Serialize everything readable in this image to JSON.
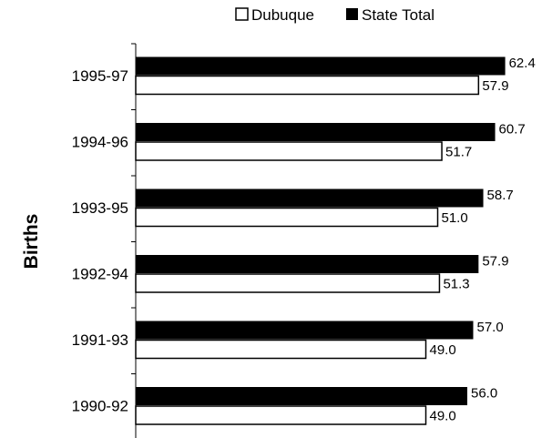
{
  "chart_data": {
    "type": "bar",
    "orientation": "horizontal",
    "categories": [
      "1995-97",
      "1994-96",
      "1993-95",
      "1992-94",
      "1991-93",
      "1990-92"
    ],
    "series": [
      {
        "name": "State Total",
        "color": "#000000",
        "values": [
          62.4,
          60.7,
          58.7,
          57.9,
          57.0,
          56.0
        ]
      },
      {
        "name": "Dubuque",
        "color": "#ffffff",
        "values": [
          57.9,
          51.7,
          51.0,
          51.3,
          49.0,
          49.0
        ]
      }
    ],
    "ylabel": "Births",
    "legend": "top",
    "grid": false,
    "value_labels": true
  }
}
